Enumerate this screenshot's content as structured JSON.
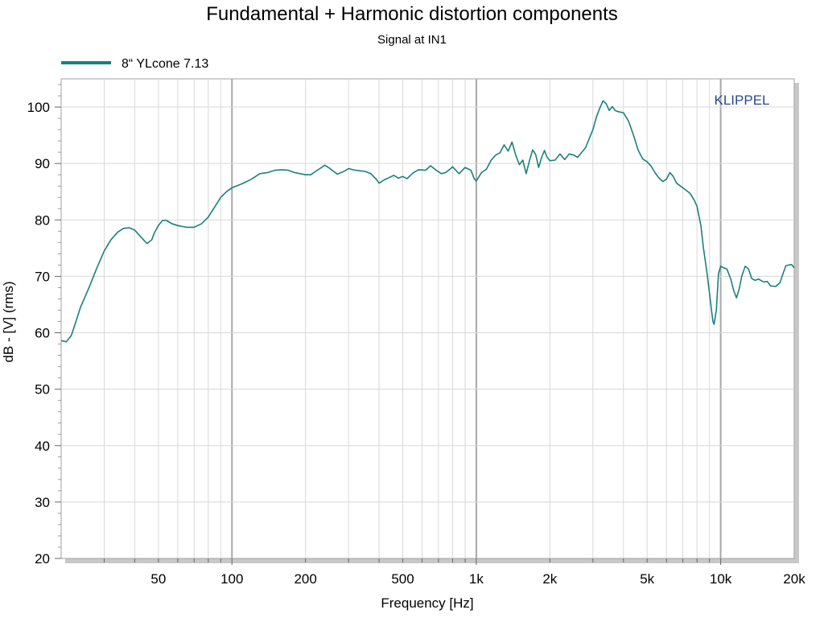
{
  "chart_data": {
    "type": "line",
    "title": "Fundamental + Harmonic distortion components",
    "subtitle": "Signal at IN1",
    "xlabel": "Frequency [Hz]",
    "ylabel": "dB - [V]  (rms)",
    "x_scale": "log",
    "xlim": [
      20,
      20000
    ],
    "ylim": [
      20,
      105
    ],
    "grid": true,
    "legend_position": "top-left",
    "x_ticks": [
      {
        "value": 50,
        "label": "50"
      },
      {
        "value": 100,
        "label": "100"
      },
      {
        "value": 200,
        "label": "200"
      },
      {
        "value": 500,
        "label": "500"
      },
      {
        "value": 1000,
        "label": "1k"
      },
      {
        "value": 2000,
        "label": "2k"
      },
      {
        "value": 5000,
        "label": "5k"
      },
      {
        "value": 10000,
        "label": "10k"
      },
      {
        "value": 20000,
        "label": "20k"
      }
    ],
    "y_ticks": [
      {
        "value": 20,
        "label": "20"
      },
      {
        "value": 30,
        "label": "30"
      },
      {
        "value": 40,
        "label": "40"
      },
      {
        "value": 50,
        "label": "50"
      },
      {
        "value": 60,
        "label": "60"
      },
      {
        "value": 70,
        "label": "70"
      },
      {
        "value": 80,
        "label": "80"
      },
      {
        "value": 90,
        "label": "90"
      },
      {
        "value": 100,
        "label": "100"
      }
    ],
    "watermark": "KLIPPEL",
    "series": [
      {
        "name": "8“ YLcone 7.13",
        "color": "#1a8080",
        "points": [
          [
            20,
            58.6
          ],
          [
            21,
            58.4
          ],
          [
            22,
            59.5
          ],
          [
            23,
            62
          ],
          [
            24,
            64.5
          ],
          [
            26,
            68
          ],
          [
            28,
            71.5
          ],
          [
            30,
            74.5
          ],
          [
            32,
            76.5
          ],
          [
            34,
            77.8
          ],
          [
            36,
            78.5
          ],
          [
            38,
            78.6
          ],
          [
            40,
            78.2
          ],
          [
            42,
            77.2
          ],
          [
            44,
            76.2
          ],
          [
            45,
            75.8
          ],
          [
            47,
            76.5
          ],
          [
            48,
            77.6
          ],
          [
            50,
            79
          ],
          [
            52,
            79.9
          ],
          [
            54,
            79.9
          ],
          [
            57,
            79.3
          ],
          [
            60,
            79
          ],
          [
            65,
            78.7
          ],
          [
            70,
            78.7
          ],
          [
            75,
            79.3
          ],
          [
            80,
            80.5
          ],
          [
            85,
            82.3
          ],
          [
            90,
            84
          ],
          [
            95,
            85
          ],
          [
            100,
            85.7
          ],
          [
            110,
            86.4
          ],
          [
            120,
            87.2
          ],
          [
            130,
            88.2
          ],
          [
            140,
            88.4
          ],
          [
            150,
            88.8
          ],
          [
            160,
            88.9
          ],
          [
            170,
            88.8
          ],
          [
            180,
            88.4
          ],
          [
            190,
            88.2
          ],
          [
            200,
            88
          ],
          [
            210,
            88
          ],
          [
            220,
            88.6
          ],
          [
            240,
            89.7
          ],
          [
            250,
            89.2
          ],
          [
            270,
            88.1
          ],
          [
            290,
            88.7
          ],
          [
            300,
            89.1
          ],
          [
            320,
            88.8
          ],
          [
            350,
            88.6
          ],
          [
            370,
            88.2
          ],
          [
            390,
            87.2
          ],
          [
            400,
            86.5
          ],
          [
            420,
            87.1
          ],
          [
            440,
            87.5
          ],
          [
            460,
            87.9
          ],
          [
            480,
            87.4
          ],
          [
            500,
            87.7
          ],
          [
            520,
            87.3
          ],
          [
            550,
            88.3
          ],
          [
            580,
            88.9
          ],
          [
            620,
            88.8
          ],
          [
            650,
            89.6
          ],
          [
            680,
            88.9
          ],
          [
            720,
            88.2
          ],
          [
            750,
            88.4
          ],
          [
            800,
            89.4
          ],
          [
            850,
            88.2
          ],
          [
            900,
            89.3
          ],
          [
            950,
            88.8
          ],
          [
            980,
            87.3
          ],
          [
            1000,
            86.9
          ],
          [
            1050,
            88.4
          ],
          [
            1100,
            89
          ],
          [
            1150,
            90.6
          ],
          [
            1200,
            91.5
          ],
          [
            1250,
            91.9
          ],
          [
            1300,
            93.3
          ],
          [
            1350,
            92.2
          ],
          [
            1400,
            93.8
          ],
          [
            1450,
            91.5
          ],
          [
            1500,
            89.8
          ],
          [
            1550,
            90.6
          ],
          [
            1600,
            88.2
          ],
          [
            1650,
            90.5
          ],
          [
            1700,
            92.4
          ],
          [
            1750,
            91.6
          ],
          [
            1800,
            89.3
          ],
          [
            1850,
            91.1
          ],
          [
            1900,
            92.3
          ],
          [
            1950,
            91.1
          ],
          [
            2000,
            90.5
          ],
          [
            2100,
            90.6
          ],
          [
            2200,
            91.7
          ],
          [
            2300,
            90.7
          ],
          [
            2400,
            91.7
          ],
          [
            2500,
            91.5
          ],
          [
            2600,
            91.1
          ],
          [
            2800,
            92.8
          ],
          [
            3000,
            96
          ],
          [
            3100,
            98.2
          ],
          [
            3200,
            99.8
          ],
          [
            3300,
            101.1
          ],
          [
            3400,
            100.6
          ],
          [
            3500,
            99.4
          ],
          [
            3600,
            100.1
          ],
          [
            3700,
            99.4
          ],
          [
            3800,
            99.2
          ],
          [
            4000,
            99
          ],
          [
            4200,
            97.5
          ],
          [
            4400,
            95
          ],
          [
            4600,
            92.3
          ],
          [
            4800,
            90.8
          ],
          [
            5000,
            90.3
          ],
          [
            5200,
            89.5
          ],
          [
            5400,
            88.3
          ],
          [
            5600,
            87.4
          ],
          [
            5800,
            86.8
          ],
          [
            6000,
            87.2
          ],
          [
            6200,
            88.4
          ],
          [
            6400,
            87.7
          ],
          [
            6600,
            86.5
          ],
          [
            7000,
            85.7
          ],
          [
            7500,
            84.7
          ],
          [
            7800,
            83.5
          ],
          [
            8000,
            82.4
          ],
          [
            8300,
            79
          ],
          [
            8500,
            75
          ],
          [
            8800,
            70.5
          ],
          [
            9000,
            67
          ],
          [
            9200,
            63.5
          ],
          [
            9300,
            62
          ],
          [
            9400,
            61.5
          ],
          [
            9600,
            64
          ],
          [
            9800,
            70.5
          ],
          [
            10000,
            71.8
          ],
          [
            10300,
            71.5
          ],
          [
            10600,
            71.3
          ],
          [
            11000,
            69.5
          ],
          [
            11300,
            67.5
          ],
          [
            11600,
            66.2
          ],
          [
            11900,
            67.7
          ],
          [
            12200,
            70
          ],
          [
            12600,
            71.8
          ],
          [
            13000,
            71.3
          ],
          [
            13400,
            69.6
          ],
          [
            13800,
            69.3
          ],
          [
            14300,
            69.5
          ],
          [
            15000,
            69
          ],
          [
            15500,
            69.1
          ],
          [
            16000,
            68.3
          ],
          [
            16800,
            68.2
          ],
          [
            17500,
            68.9
          ],
          [
            18000,
            70.5
          ],
          [
            18500,
            71.9
          ],
          [
            19500,
            72.1
          ],
          [
            20000,
            71.5
          ]
        ]
      }
    ]
  }
}
